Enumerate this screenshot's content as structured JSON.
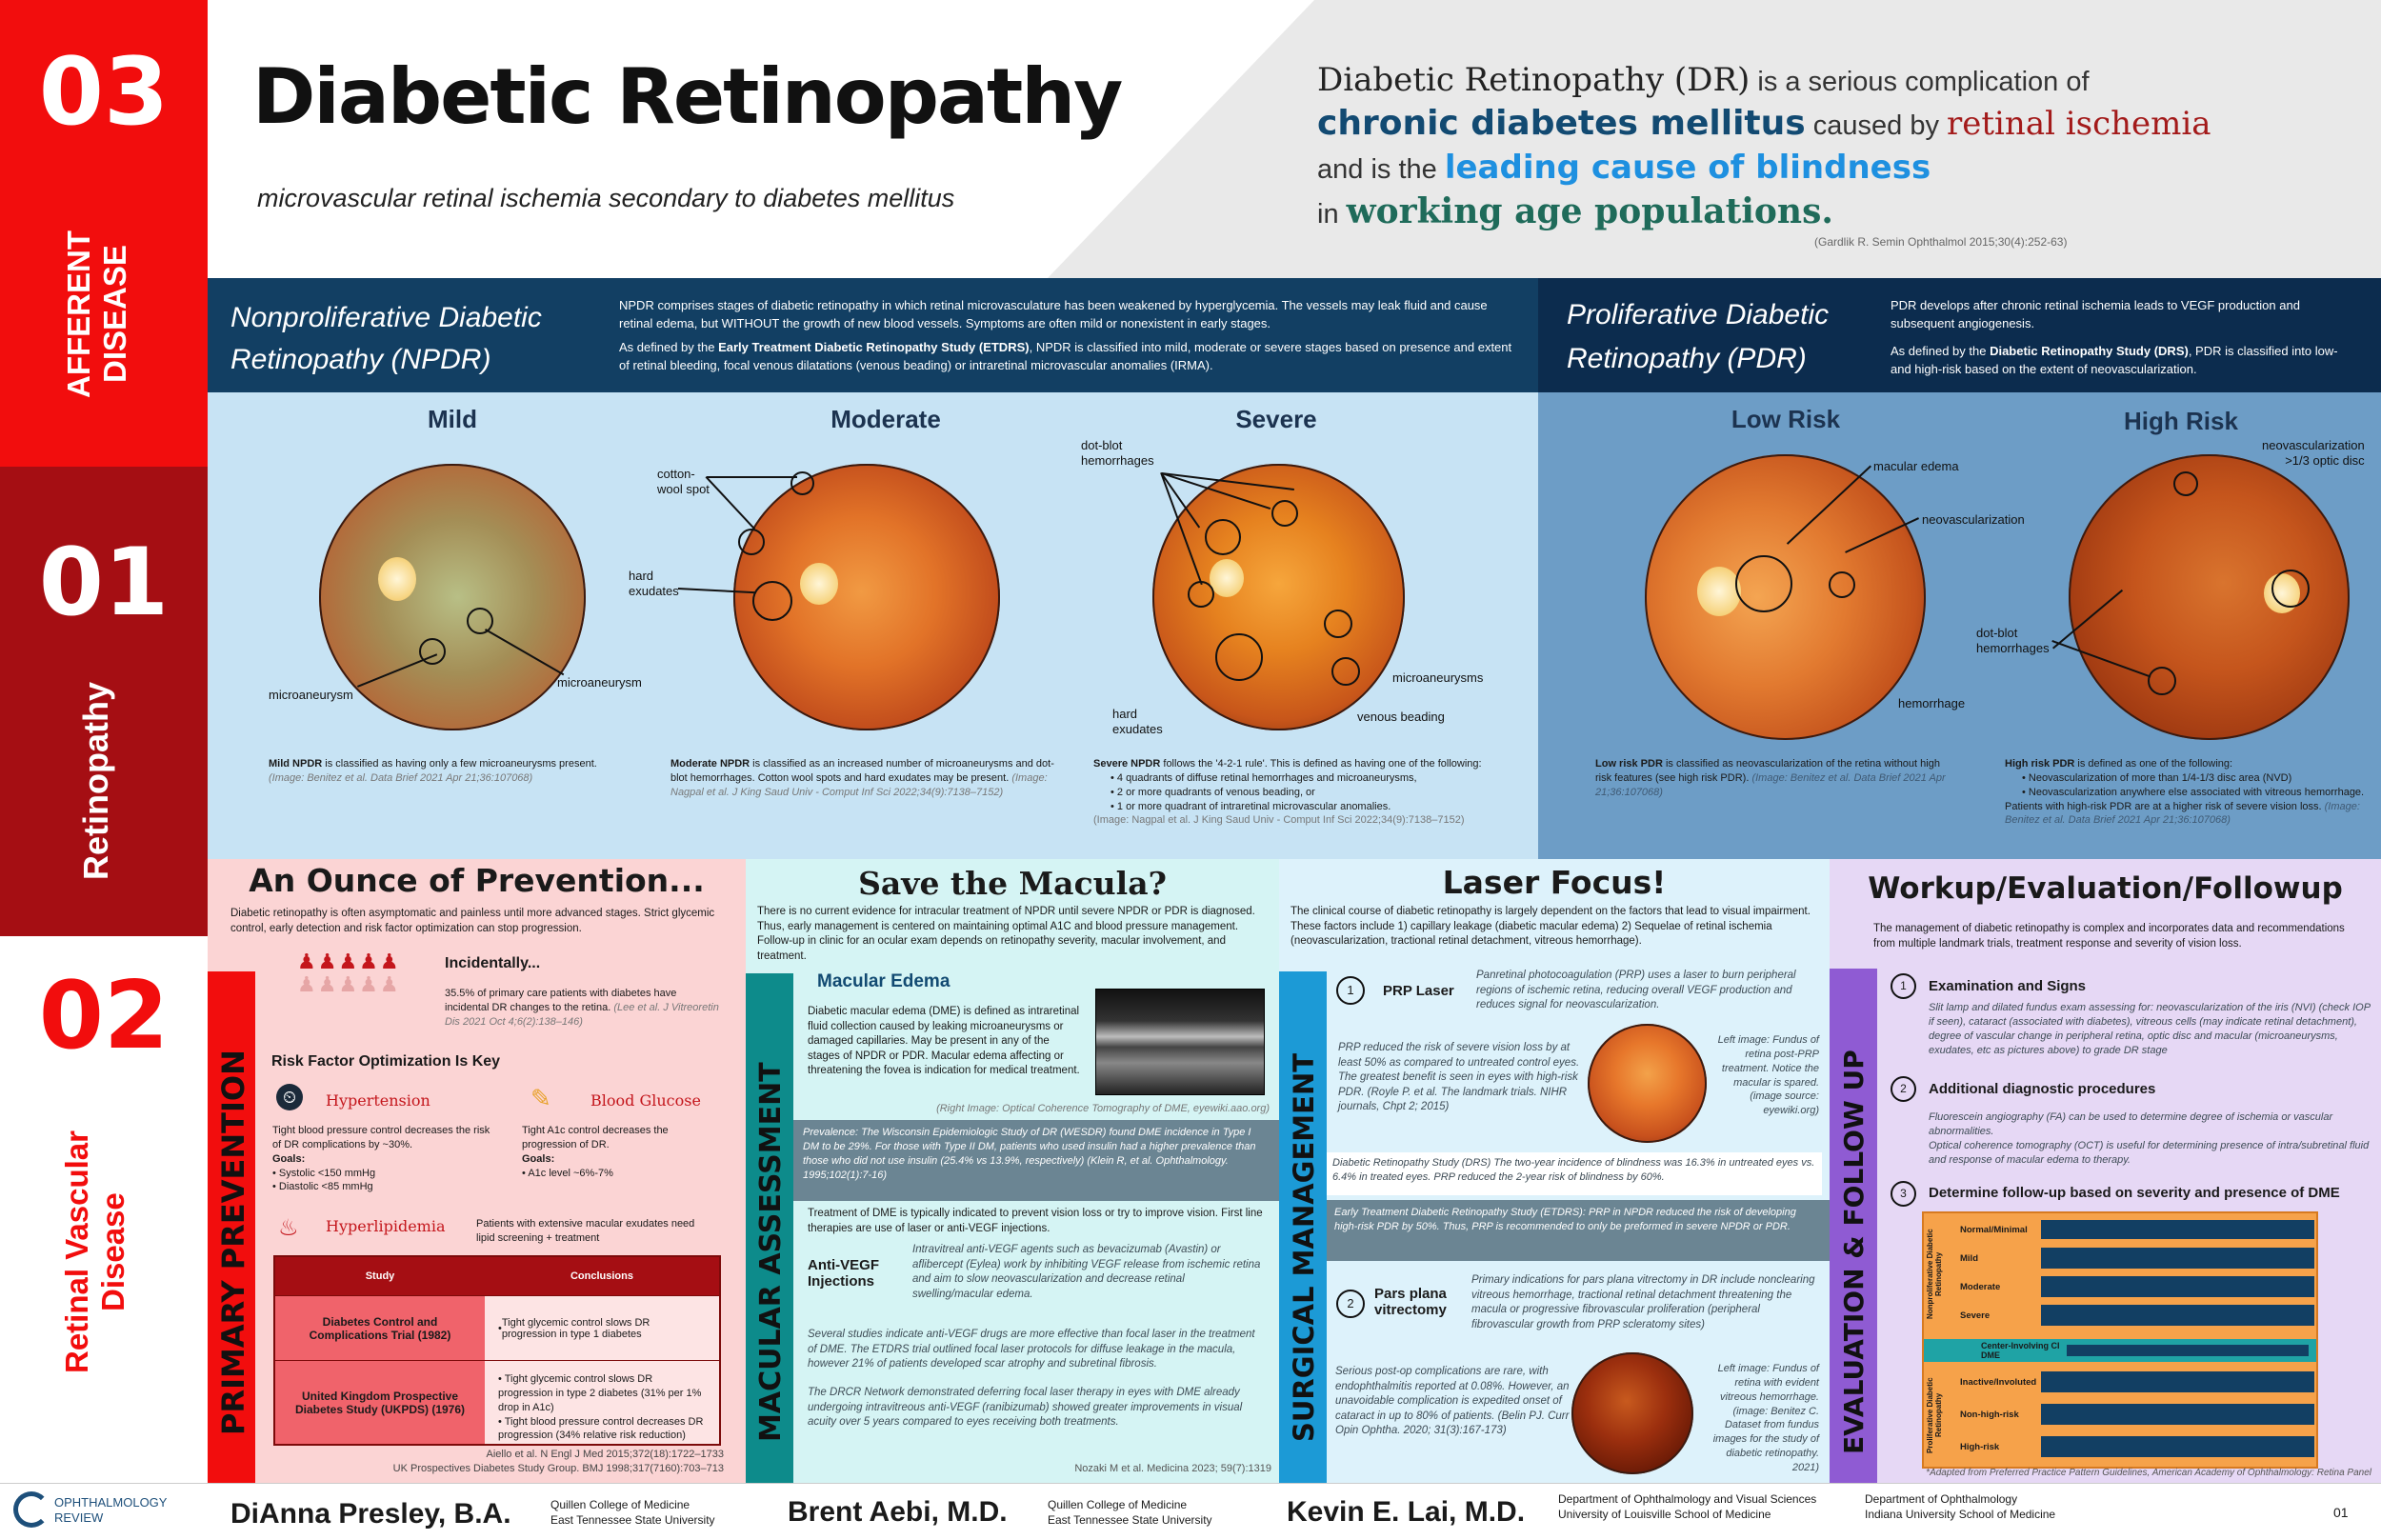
{
  "side": {
    "num03": "03",
    "afferent": "AFFERENT DISEASE",
    "num01": "01",
    "retinopathy": "Retinopathy",
    "num02": "02",
    "retinal_vascular": "Retinal Vascular Disease"
  },
  "header": {
    "title": "Diabetic Retinopathy",
    "subtitle": "microvascular retinal ischemia secondary to diabetes mellitus",
    "def1": "Diabetic Retinopathy (DR)",
    "def2": " is a serious complication of",
    "def3": "chronic diabetes mellitus",
    "def4": " caused by ",
    "def5": "retinal ischemia",
    "def6": "and is the ",
    "def7": "leading cause of blindness",
    "def8": "in ",
    "def9": "working age populations.",
    "cite": "(Gardlik R. Semin Ophthalmol 2015;30(4):252-63)"
  },
  "npdr": {
    "title": "Nonproliferative Diabetic Retinopathy (NPDR)",
    "p1": "NPDR comprises stages of diabetic retinopathy in which retinal microvasculature has been weakened by hyperglycemia. The vessels may leak fluid and cause retinal edema, but WITHOUT the growth of new blood vessels. Symptoms are often mild or nonexistent in early stages.",
    "p2a": "As defined by the ",
    "p2b": "Early Treatment Diabetic Retinopathy Study (ETDRS)",
    "p2c": ", NPDR is classified into mild, moderate or severe stages based on presence and extent of retinal bleeding, focal venous dilatations (venous beading) or intraretinal microvascular anomalies (IRMA)."
  },
  "pdr": {
    "title": "Proliferative Diabetic Retinopathy (PDR)",
    "p1": "PDR develops after chronic retinal ischemia leads to VEGF production and subsequent angiogenesis.",
    "p2a": "As defined by the ",
    "p2b": "Diabetic Retinopathy Study (DRS)",
    "p2c": ", PDR is classified into low- and high-risk based on the extent of neovascularization."
  },
  "stages": {
    "mild": "Mild",
    "moderate": "Moderate",
    "severe": "Severe",
    "low": "Low Risk",
    "high": "High Risk"
  },
  "labels": {
    "microaneurysm": "microaneurysm",
    "cotton": "cotton-\nwool spot",
    "hard": "hard\nexudates",
    "dotblot": "dot-blot\nhemorrhages",
    "microaneurysms": "microaneurysms",
    "venous": "venous beading",
    "macular": "macular edema",
    "neovasc": "neovascularization",
    "hemorrhage": "hemorrhage",
    "nvd": "neovascularization\n>1/3 optic disc"
  },
  "captions": {
    "mild_b": "Mild NPDR",
    "mild": " is classified as having only a few microaneurysms present.",
    "mild_c": "(Image: Benitez et al. Data Brief 2021 Apr 21;36:107068)",
    "mod_b": "Moderate NPDR",
    "mod": " is classified as an increased number of microaneurysms and dot-blot hemorrhages. Cotton wool spots and hard exudates may be present.",
    "mod_c": "(Image: Nagpal et al. J King Saud Univ - Comput Inf Sci 2022;34(9):7138–7152)",
    "sev_b": "Severe NPDR",
    "sev": " follows the '4-2-1 rule'. This is defined as having one of the following:",
    "sev_l1": "4 quadrants of diffuse retinal hemorrhages and microaneurysms,",
    "sev_l2": "2 or more quadrants of venous beading, or",
    "sev_l3": "1 or more quadrant of intraretinal microvascular anomalies.",
    "sev_c": "(Image: Nagpal et al. J King Saud Univ - Comput Inf Sci 2022;34(9):7138–7152)",
    "low_b": "Low risk PDR",
    "low": " is classified as neovascularization of the retina without high risk features (see high risk PDR).",
    "low_c": "(Image: Benitez et al. Data Brief 2021 Apr 21;36:107068)",
    "high_b": "High risk PDR",
    "high": " is defined as one of the following:",
    "high_l1": "Neovascularization of more than 1/4-1/3 disc area (NVD)",
    "high_l2": "Neovascularization anywhere else associated with vitreous hemorrhage.",
    "high_l3": "Patients with high-risk PDR are at a higher risk of severe vision loss.",
    "high_c": "(Image: Benitez et al. Data Brief 2021 Apr 21;36:107068)"
  },
  "prev": {
    "title": "An Ounce of Prevention...",
    "intro": "Diabetic retinopathy is often asymptomatic and painless until more advanced stages. Strict glycemic control, early detection and risk factor optimization can stop progression.",
    "inc_h": "Incidentally...",
    "inc": "35.5% of primary care patients with diabetes have incidental DR changes to the retina.",
    "inc_c": "(Lee et al. J Vitreoretin Dis 2021 Oct 4;6(2):138–146)",
    "risk_h": "Risk Factor Optimization Is Key",
    "htn": "Hypertension",
    "htn_t": "Tight blood pressure control decreases the risk of DR complications by ~30%.",
    "goals": "Goals:",
    "htn_g1": "Systolic <150 mmHg",
    "htn_g2": "Diastolic <85 mmHg",
    "bg": "Blood Glucose",
    "bg_t": "Tight A1c control decreases the progression of DR.",
    "bg_g1": "A1c level ~6%-7%",
    "hl": "Hyperlipidemia",
    "hl_t": "Patients with extensive macular exudates need lipid screening + treatment",
    "th_study": "Study",
    "th_conc": "Conclusions",
    "r1_s": "Diabetes Control and Complications Trial (1982)",
    "r1_c": "Tight glycemic control slows DR progression in type 1 diabetes",
    "r2_s": "United Kingdom Prospective Diabetes Study (UKPDS) (1976)",
    "r2_c1": "Tight glycemic control slows DR progression in type 2 diabetes (31% per 1% drop in A1c)",
    "r2_c2": "Tight blood pressure control decreases DR progression (34% relative risk reduction)",
    "c1": "Aiello et al. N Engl J Med 2015;372(18):1722–1733",
    "c2": "UK Prospectives Diabetes Study Group. BMJ 1998;317(7160):703–713",
    "side": "PRIMARY PREVENTION"
  },
  "mac": {
    "title": "Save the Macula?",
    "intro": "There is no current evidence for intracular treatment of NPDR until severe NPDR or PDR is diagnosed. Thus, early management is centered on maintaining optimal A1C and blood pressure management. Follow-up in clinic for an ocular exam depends on retinopathy severity, macular involvement, and treatment.",
    "me_h": "Macular Edema",
    "me": "Diabetic macular edema (DME) is defined as intraretinal fluid collection caused by leaking microaneurysms or damaged capillaries. May be present in any of the stages of NPDR or PDR. Macular edema affecting or threatening the fovea is indication for medical treatment.",
    "oct_c": "(Right Image: Optical Coherence Tomography of DME, eyewiki.aao.org)",
    "prev_box": "Prevalence: The Wisconsin Epidemiologic Study of DR (WESDR) found DME incidence in Type I DM to be 29%. For those with Type II DM, patients who used insulin had a higher prevalence than those who did not use insulin (25.4% vs 13.9%, respectively) (Klein R, et al. Ophthalmology. 1995;102(1):7-16)",
    "tx": "Treatment of DME is typically indicated to prevent vision loss or try to improve vision. First line therapies are use of laser or anti-VEGF injections.",
    "avegf_h": "Anti-VEGF Injections",
    "avegf": "Intravitreal anti-VEGF agents such as bevacizumab (Avastin) or aflibercept (Eylea) work by inhibiting VEGF release from ischemic retina and aim to slow neovascularization and decrease retinal swelling/macular edema.",
    "sev": "Several studies indicate anti-VEGF drugs are more effective than focal laser in the treatment of DME. The ETDRS trial outlined focal laser protocols for diffuse leakage in the macula, however 21% of patients developed scar atrophy and subretinal fibrosis.",
    "drcr": "The DRCR Network demonstrated deferring focal laser therapy in eyes with DME already undergoing intravitreous anti-VEGF (ranibizumab) showed greater improvements in visual acuity over 5 years compared to eyes receiving both treatments.",
    "cite": "Nozaki M et al. Medicina 2023; 59(7):1319",
    "side": "MACULAR ASSESSMENT"
  },
  "laser": {
    "title": "Laser Focus!",
    "intro": "The clinical course of diabetic retinopathy is largely dependent on the factors that lead to visual impairment. These factors include 1) capillary leakage (diabetic macular edema) 2) Sequelae of retinal ischemia (neovascularization, tractional retinal detachment, vitreous hemorrhage).",
    "n1": "1",
    "prp": "PRP Laser",
    "prp_t": "Panretinal photocoagulation (PRP) uses a laser to burn peripheral regions of ischemic retina, reducing overall VEGF production and reduces signal for neovascularization.",
    "prp_r": "PRP reduced the risk of severe vision loss by at least 50% as compared to untreated control eyes. The greatest benefit is seen in eyes with high-risk PDR. (Royle P. et al. The landmark trials. NIHR journals, Chpt 2; 2015)",
    "prp_img": "Left image: Fundus of retina post-PRP treatment. Notice the macular is spared. (image source: eyewiki.org)",
    "drs": "Diabetic Retinopathy Study (DRS)  The two-year incidence of blindness was 16.3% in untreated eyes vs. 6.4% in treated eyes. PRP reduced the 2-year risk of blindness by 60%.",
    "etdrs": "Early Treatment Diabetic Retinopathy Study (ETDRS):  PRP in NPDR reduced the risk of developing high-risk PDR by 50%. Thus, PRP is recommended to only be preformed in severe NPDR or PDR.",
    "n2": "2",
    "ppv": "Pars plana vitrectomy",
    "ppv_t": "Primary indications for pars plana vitrectomy in DR include nonclearing vitreous hemorrhage, tractional retinal detachment threatening the macula or progressive fibrovascular proliferation (peripheral fibrovascular growth from PRP scleratomy sites)",
    "ppv_r": "Serious post-op complications are rare, with endophthalmitis reported at 0.08%. However, an unavoidable complication is expedited onset of cataract in up to 80% of patients. (Belin PJ. Curr Opin Ophtha. 2020; 31(3):167-173)",
    "ppv_img": "Left image: Fundus of retina with evident vitreous hemorrhage. (image: Benitez C. Dataset from fundus images for the study of diabetic retinopathy. 2021)",
    "side": "SURGICAL MANAGEMENT"
  },
  "work": {
    "title": "Workup/Evaluation/Followup",
    "intro": "The management of diabetic retinopathy is complex and incorporates data and recommendations from multiple landmark trials, treatment response and severity of vision loss.",
    "n1": "1",
    "h1": "Examination and Signs",
    "t1": "Slit lamp and dilated fundus exam assessing for: neovascularization of the iris (NVI) (check IOP if seen), cataract (associated with diabetes), vitreous cells (may indicate retinal detachment), degree of vascular change in peripheral retina, optic disc and macular (microaneurysms, exudates, etc as pictures above) to grade DR stage",
    "n2": "2",
    "h2": "Additional diagnostic procedures",
    "t2a": "Fluorescein angiography (FA) can be used to determine degree of ischemia or vascular abnormalities.",
    "t2b": "Optical coherence tomography (OCT) is useful for determining presence of intra/subretinal fluid and response of macular edema to therapy.",
    "n3": "3",
    "h3": "Determine follow-up based on severity and presence of DME",
    "tbl_npdr": "Nonproliferative Diabetic Retinopathy",
    "tbl_pdr": "Proliferative Diabetic Retinopathy",
    "rows": [
      "Normal/Minimal",
      "Mild",
      "Moderate",
      "Severe"
    ],
    "center": "Center-Involving CI DME",
    "prows": [
      "Inactive/Involuted",
      "Non-high-risk",
      "High-risk"
    ],
    "note": "*Adapted from Preferred Practice Pattern Guidelines, American Academy of Ophthalmology: Retina Panel",
    "side": "EVALUATION & FOLLOW UP"
  },
  "footer": {
    "logo1": "OPHTHALMOLOGY",
    "logo2": "REVIEW",
    "a1": "DiAnna Presley, B.A.",
    "a1i1": "Quillen College of Medicine",
    "a1i2": "East Tennessee State University",
    "a2": "Brent Aebi, M.D.",
    "a2i1": "Quillen College of Medicine",
    "a2i2": "East Tennessee State University",
    "a3": "Kevin E. Lai, M.D.",
    "a3i1": "Department of Ophthalmology and Visual Sciences",
    "a3i2": "University of Louisville School of Medicine",
    "a3i3": "Department of Ophthalmology",
    "a3i4": "Indiana University School of Medicine",
    "page": "01"
  },
  "colors": {
    "red": "#f20d0d",
    "darkred": "#a50e13",
    "navy": "#123f63",
    "blue": "#c7e3f4",
    "pdrblue": "#6d9dc6",
    "pink": "#fbd4d4",
    "teal": "#d5f4f4",
    "purple": "#e6d8f5"
  }
}
